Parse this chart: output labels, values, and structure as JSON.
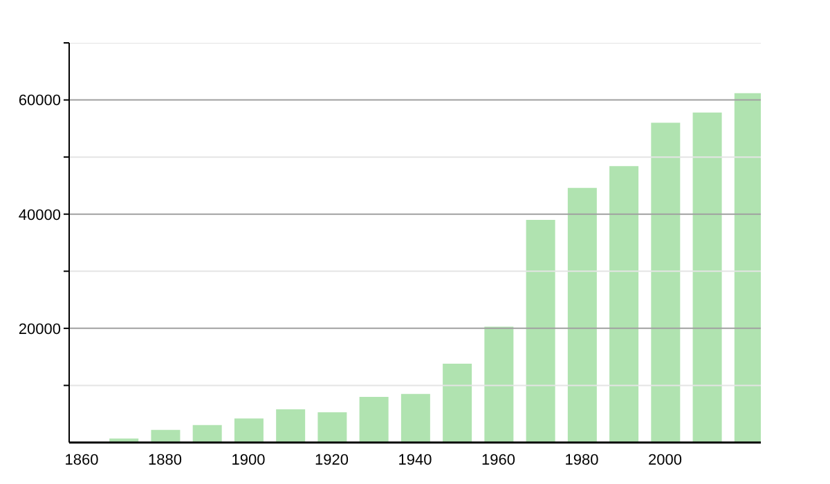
{
  "chart_data": {
    "type": "bar",
    "x": [
      1870,
      1880,
      1890,
      1900,
      1910,
      1920,
      1930,
      1940,
      1950,
      1960,
      1970,
      1980,
      1990,
      2000,
      2010,
      2020
    ],
    "values": [
      700,
      2200,
      3050,
      4200,
      5800,
      5300,
      8000,
      8500,
      13800,
      20300,
      39000,
      44600,
      48400,
      56000,
      57800,
      61200
    ],
    "color": "#b0e3b0",
    "xlim": [
      1857,
      2023
    ],
    "xticks": [
      1860,
      1880,
      1900,
      1920,
      1940,
      1960,
      1980,
      2000
    ],
    "ylim": [
      0,
      70000
    ],
    "yticks": [
      {
        "value": 10000,
        "label": null
      },
      20000,
      {
        "value": 30000,
        "label": null
      },
      40000,
      {
        "value": 50000,
        "label": null
      },
      60000,
      {
        "value": 70000,
        "label": null
      }
    ],
    "grid": "y"
  }
}
